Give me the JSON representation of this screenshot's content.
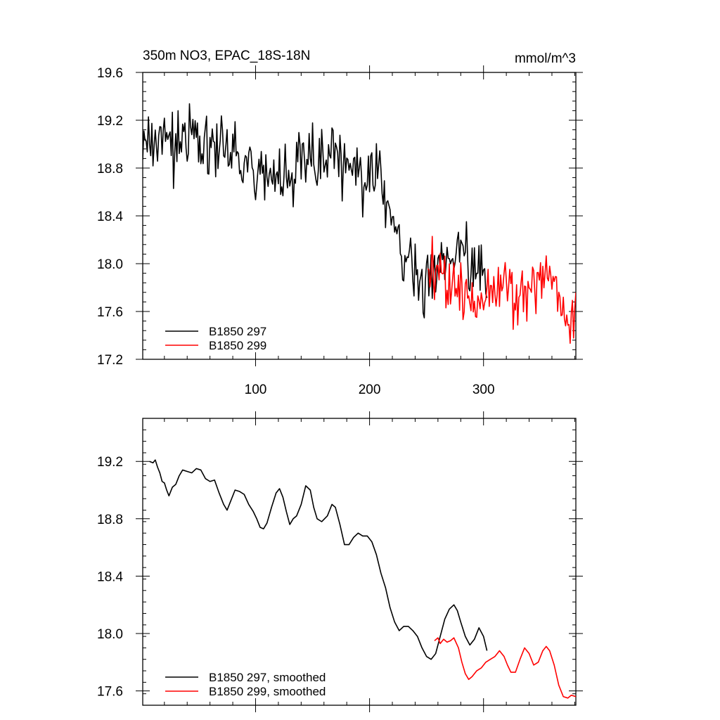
{
  "chart_data": [
    {
      "type": "line",
      "title": "350m NO3, EPAC_18S-18N",
      "units": "mmol/m^3",
      "xlim": [
        1,
        381
      ],
      "ylim": [
        17.2,
        19.6
      ],
      "yticks": [
        17.2,
        17.6,
        18.0,
        18.4,
        18.8,
        19.2,
        19.6
      ],
      "ytick_labels": [
        "17.2",
        "17.6",
        "18.0",
        "18.4",
        "18.8",
        "19.2",
        "19.6"
      ],
      "xticks": [
        100,
        200,
        300
      ],
      "xtick_labels": [
        "100",
        "200",
        "300"
      ],
      "legend_position": "bottom-left",
      "series": [
        {
          "name": "B1850 297",
          "color": "#000000",
          "x_start": 1,
          "x_end": 303,
          "knots": [
            [
              1,
              19.02
            ],
            [
              10,
              19.12
            ],
            [
              20,
              19.02
            ],
            [
              30,
              18.96
            ],
            [
              40,
              19.05
            ],
            [
              50,
              19.08
            ],
            [
              60,
              19.02
            ],
            [
              70,
              18.95
            ],
            [
              80,
              18.9
            ],
            [
              90,
              18.86
            ],
            [
              100,
              18.82
            ],
            [
              110,
              18.78
            ],
            [
              120,
              18.8
            ],
            [
              130,
              18.72
            ],
            [
              140,
              18.85
            ],
            [
              150,
              18.9
            ],
            [
              160,
              18.84
            ],
            [
              170,
              18.92
            ],
            [
              180,
              18.8
            ],
            [
              190,
              18.7
            ],
            [
              200,
              18.72
            ],
            [
              210,
              18.7
            ],
            [
              220,
              18.35
            ],
            [
              230,
              18.05
            ],
            [
              240,
              17.88
            ],
            [
              250,
              17.85
            ],
            [
              260,
              17.9
            ],
            [
              270,
              18.1
            ],
            [
              280,
              18.15
            ],
            [
              290,
              18.0
            ],
            [
              303,
              17.85
            ]
          ],
          "noise": 0.13,
          "seed": 297
        },
        {
          "name": "B1850 299",
          "color": "#ff0000",
          "x_start": 251,
          "x_end": 381,
          "knots": [
            [
              251,
              17.95
            ],
            [
              260,
              17.95
            ],
            [
              270,
              17.82
            ],
            [
              280,
              17.7
            ],
            [
              290,
              17.68
            ],
            [
              300,
              17.75
            ],
            [
              310,
              17.78
            ],
            [
              320,
              17.82
            ],
            [
              330,
              17.74
            ],
            [
              340,
              17.8
            ],
            [
              350,
              17.88
            ],
            [
              360,
              17.85
            ],
            [
              370,
              17.6
            ],
            [
              381,
              17.55
            ]
          ],
          "noise": 0.13,
          "seed": 299
        }
      ]
    },
    {
      "type": "line",
      "title": "",
      "xlim": [
        1,
        381
      ],
      "ylim": [
        17.5,
        19.5
      ],
      "yticks": [
        17.6,
        18.0,
        18.4,
        18.8,
        19.2
      ],
      "ytick_labels": [
        "17.6",
        "18.0",
        "18.4",
        "18.8",
        "19.2"
      ],
      "xticks": [
        100,
        200,
        300
      ],
      "xtick_labels": [],
      "legend_position": "bottom-left",
      "series": [
        {
          "name": "B1850 297, smoothed",
          "color": "#000000",
          "points": [
            [
              7,
              19.2
            ],
            [
              10,
              19.19
            ],
            [
              12,
              19.21
            ],
            [
              14,
              19.16
            ],
            [
              16,
              19.12
            ],
            [
              18,
              19.06
            ],
            [
              20,
              19.05
            ],
            [
              22,
              19.0
            ],
            [
              24,
              18.96
            ],
            [
              27,
              19.02
            ],
            [
              30,
              19.04
            ],
            [
              33,
              19.1
            ],
            [
              36,
              19.14
            ],
            [
              40,
              19.13
            ],
            [
              44,
              19.12
            ],
            [
              48,
              19.15
            ],
            [
              52,
              19.14
            ],
            [
              56,
              19.08
            ],
            [
              60,
              19.06
            ],
            [
              64,
              19.07
            ],
            [
              68,
              18.98
            ],
            [
              72,
              18.9
            ],
            [
              75,
              18.86
            ],
            [
              78,
              18.92
            ],
            [
              82,
              19.0
            ],
            [
              86,
              18.99
            ],
            [
              90,
              18.97
            ],
            [
              94,
              18.9
            ],
            [
              98,
              18.85
            ],
            [
              101,
              18.8
            ],
            [
              104,
              18.74
            ],
            [
              107,
              18.73
            ],
            [
              110,
              18.77
            ],
            [
              114,
              18.88
            ],
            [
              118,
              18.98
            ],
            [
              121,
              19.01
            ],
            [
              124,
              18.95
            ],
            [
              127,
              18.85
            ],
            [
              130,
              18.76
            ],
            [
              133,
              18.8
            ],
            [
              136,
              18.82
            ],
            [
              140,
              18.9
            ],
            [
              144,
              19.03
            ],
            [
              148,
              19.0
            ],
            [
              151,
              18.88
            ],
            [
              154,
              18.8
            ],
            [
              158,
              18.78
            ],
            [
              163,
              18.82
            ],
            [
              167,
              18.9
            ],
            [
              170,
              18.88
            ],
            [
              174,
              18.76
            ],
            [
              178,
              18.62
            ],
            [
              182,
              18.62
            ],
            [
              186,
              18.67
            ],
            [
              190,
              18.7
            ],
            [
              194,
              18.68
            ],
            [
              198,
              18.68
            ],
            [
              202,
              18.64
            ],
            [
              206,
              18.55
            ],
            [
              210,
              18.42
            ],
            [
              214,
              18.32
            ],
            [
              218,
              18.18
            ],
            [
              222,
              18.08
            ],
            [
              226,
              18.02
            ],
            [
              230,
              18.05
            ],
            [
              234,
              18.05
            ],
            [
              238,
              18.02
            ],
            [
              242,
              17.98
            ],
            [
              246,
              17.9
            ],
            [
              250,
              17.84
            ],
            [
              254,
              17.82
            ],
            [
              258,
              17.86
            ],
            [
              262,
              17.98
            ],
            [
              266,
              18.1
            ],
            [
              270,
              18.17
            ],
            [
              274,
              18.2
            ],
            [
              277,
              18.16
            ],
            [
              280,
              18.08
            ],
            [
              284,
              17.98
            ],
            [
              288,
              17.92
            ],
            [
              292,
              17.96
            ],
            [
              296,
              18.04
            ],
            [
              300,
              17.98
            ],
            [
              303,
              17.88
            ]
          ]
        },
        {
          "name": "B1850 299, smoothed",
          "color": "#ff0000",
          "points": [
            [
              257,
              17.95
            ],
            [
              260,
              17.97
            ],
            [
              262,
              17.93
            ],
            [
              265,
              17.96
            ],
            [
              268,
              17.94
            ],
            [
              271,
              17.95
            ],
            [
              274,
              17.97
            ],
            [
              278,
              17.9
            ],
            [
              281,
              17.8
            ],
            [
              284,
              17.72
            ],
            [
              287,
              17.68
            ],
            [
              290,
              17.7
            ],
            [
              294,
              17.74
            ],
            [
              298,
              17.76
            ],
            [
              302,
              17.8
            ],
            [
              306,
              17.82
            ],
            [
              310,
              17.84
            ],
            [
              314,
              17.88
            ],
            [
              318,
              17.84
            ],
            [
              321,
              17.78
            ],
            [
              324,
              17.73
            ],
            [
              328,
              17.73
            ],
            [
              332,
              17.82
            ],
            [
              336,
              17.9
            ],
            [
              340,
              17.86
            ],
            [
              344,
              17.78
            ],
            [
              348,
              17.8
            ],
            [
              352,
              17.88
            ],
            [
              355,
              17.91
            ],
            [
              358,
              17.88
            ],
            [
              362,
              17.78
            ],
            [
              366,
              17.64
            ],
            [
              370,
              17.56
            ],
            [
              374,
              17.55
            ],
            [
              377,
              17.57
            ],
            [
              381,
              17.56
            ]
          ]
        }
      ]
    }
  ]
}
